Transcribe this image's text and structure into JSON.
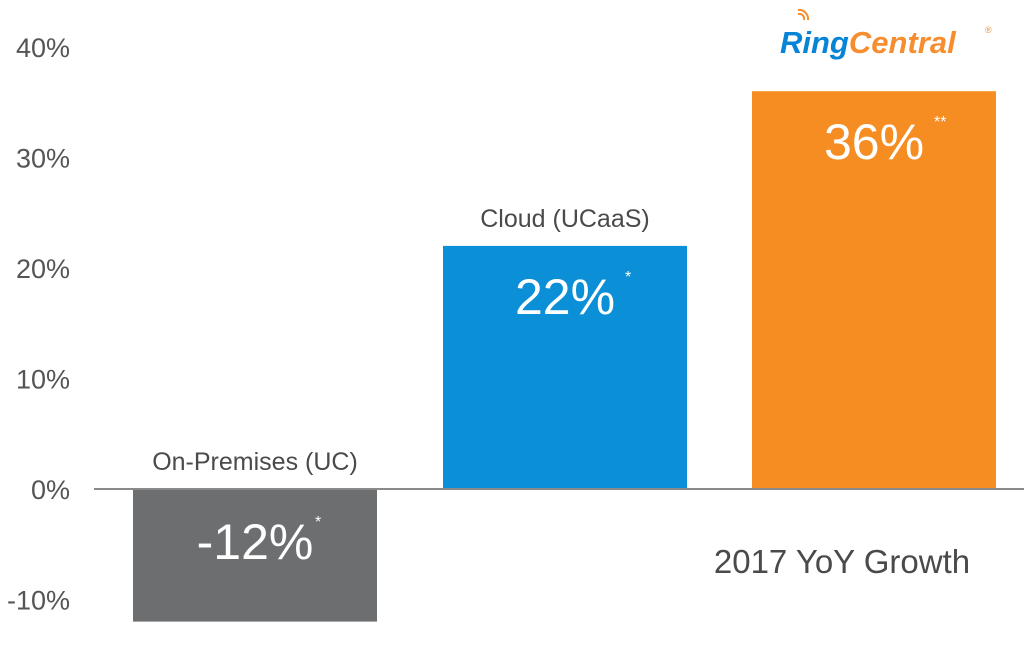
{
  "brand": {
    "logo_part1": "Ring",
    "logo_part2": "Central",
    "logo_mark": "®",
    "color_blue": "#0684d6",
    "color_orange": "#f68d2e"
  },
  "chart_data": {
    "type": "bar",
    "categories": [
      "On-Premises (UC)",
      "Cloud (UCaaS)",
      ""
    ],
    "values": [
      -12,
      22,
      36
    ],
    "value_labels": [
      "-12%",
      "22%",
      "36%"
    ],
    "value_notes": [
      "*",
      "*",
      "**"
    ],
    "colors": [
      "#6d6e70",
      "#0b8fd6",
      "#f68d22"
    ],
    "ylim": [
      -12,
      37
    ],
    "yticks": [
      -10,
      0,
      10,
      20,
      30,
      40
    ],
    "ytick_labels": [
      "-10%",
      "0%",
      "10%",
      "20%",
      "30%",
      "40%"
    ],
    "annotation": "2017 YoY Growth",
    "grid": false,
    "xlabel": "",
    "ylabel": ""
  }
}
